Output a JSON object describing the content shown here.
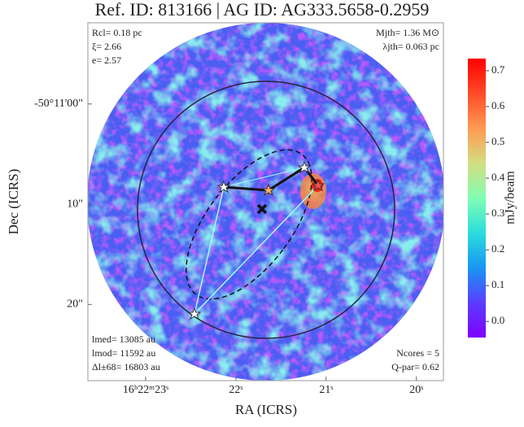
{
  "chart_data": {
    "type": "image",
    "title": "Ref. ID: 813166 | AG ID: AG333.5658-0.2959",
    "xlabel": "RA (ICRS)",
    "ylabel": "Dec (ICRS)",
    "xlim": [
      23.64,
      19.7
    ],
    "xticks": [
      {
        "value": 23,
        "label": "16ʰ22ᵐ23ˢ"
      },
      {
        "value": 22,
        "label": "22ˢ"
      },
      {
        "value": 21,
        "label": "21ˢ"
      },
      {
        "value": 20,
        "label": "20ˢ"
      }
    ],
    "ylim": [
      27.6,
      -8.1
    ],
    "yticks": [
      {
        "value": 0,
        "label": "-50°11'00\""
      },
      {
        "value": 10,
        "label": "10\""
      },
      {
        "value": 20,
        "label": "20\""
      }
    ],
    "colorbar": {
      "label": "mJy/beam",
      "lim": [
        -0.045,
        0.734
      ],
      "ticks": [
        0.0,
        0.1,
        0.2,
        0.3,
        0.4,
        0.5,
        0.6,
        0.7
      ],
      "tick_labels": [
        "0.0",
        "0.1",
        "0.2",
        "0.3",
        "0.4",
        "0.5",
        "0.6",
        "0.7"
      ]
    },
    "annotations": {
      "top_left": [
        "Rcl= 0.18 pc",
        "ξ= 2.66",
        "e= 2.57"
      ],
      "top_right": [
        "Mjth= 1.36 M⊙",
        "λjth= 0.063 pc"
      ],
      "bottom_left": [
        "lmed= 13085 au",
        "lmod= 11592 au",
        "Δl±68= 16803 au"
      ],
      "bottom_right": [
        "Ncores = 5",
        "Q-par= 0.62"
      ]
    }
  }
}
